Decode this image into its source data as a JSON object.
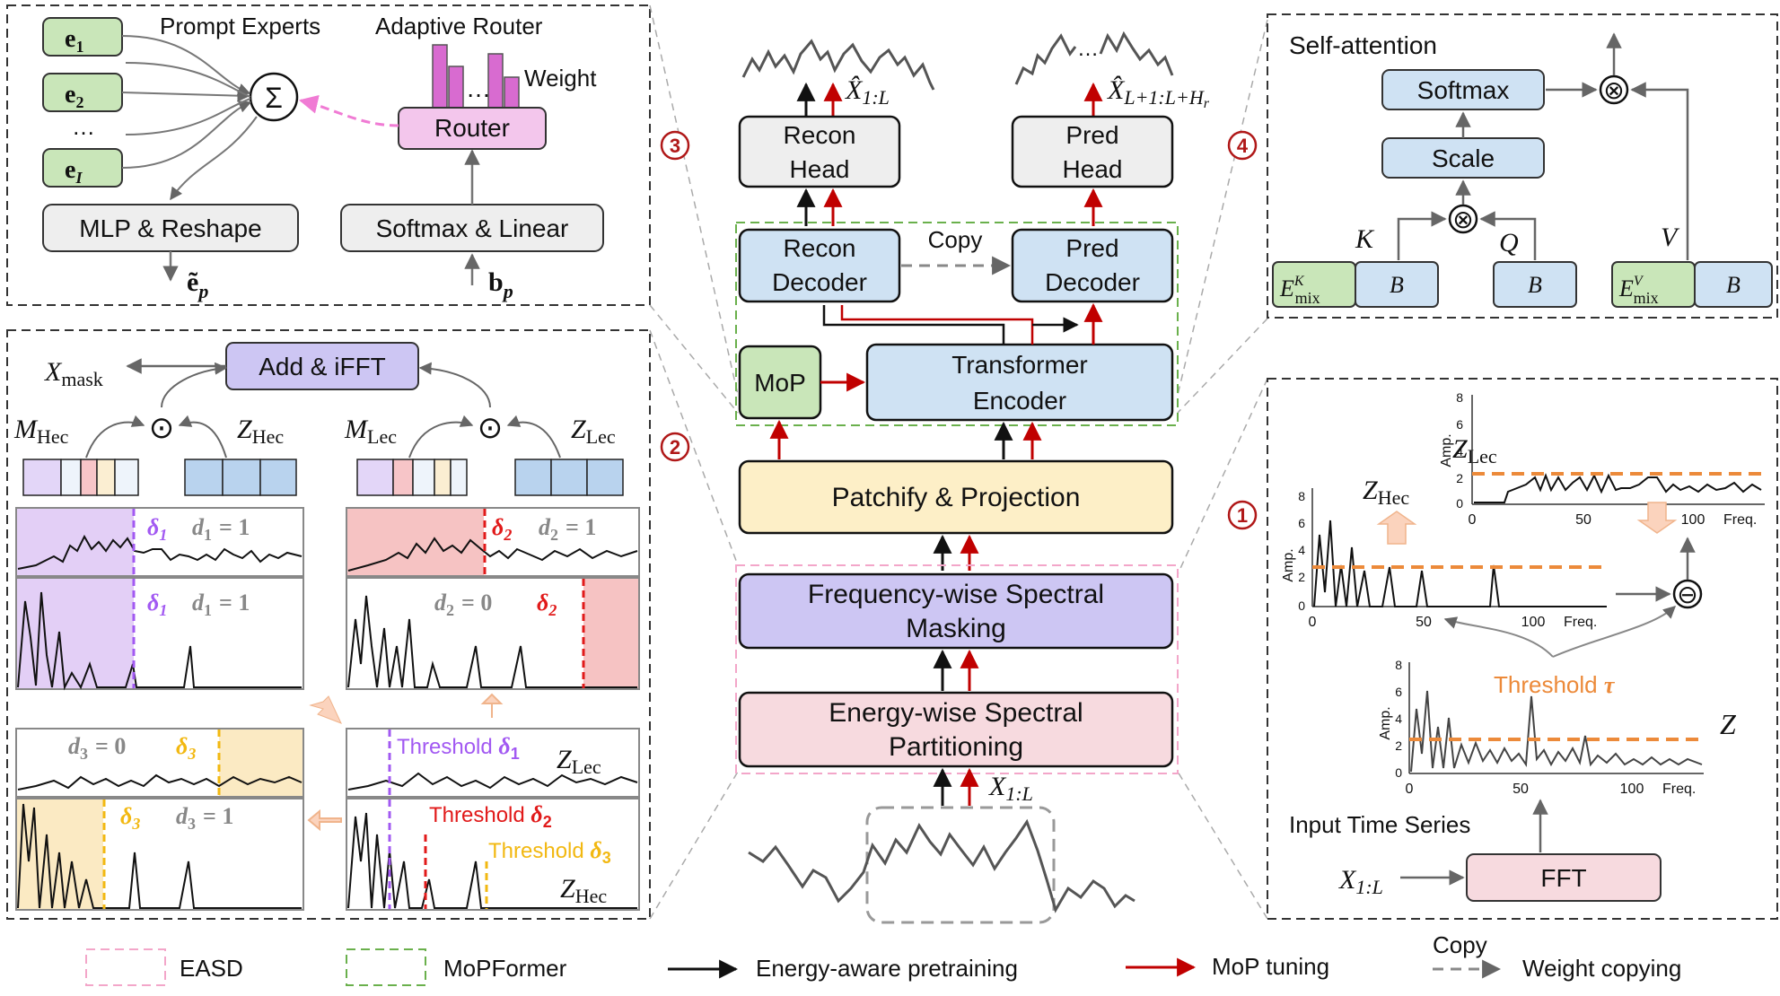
{
  "colors": {
    "green_fill": "#c9e6b9",
    "blue_fill": "#cfe2f3",
    "pink_fill": "#f7dadf",
    "yellow_fill": "#fdefc7",
    "purple_fill": "#cdc6f3",
    "magenta_fill": "#f3c6ec",
    "gray_fill": "#eeeeee",
    "dark_red": "#b01818",
    "orange": "#ec8a3a",
    "purple_line": "#a259f2",
    "red_line": "#e11a1a",
    "yellow_line": "#f2b811",
    "mop_pink": "#f37bd6"
  },
  "panel3": {
    "prompt_experts": "Prompt Experts",
    "adaptive_router": "Adaptive Router",
    "weight": "Weight",
    "router": "Router",
    "mlp_reshape": "MLP & Reshape",
    "softmax_linear": "Softmax & Linear",
    "sigma": "Σ",
    "e1_base": "e",
    "e1_sub": "1",
    "e2_base": "e",
    "e2_sub": "2",
    "eI_base": "e",
    "eI_sub": "I",
    "dots": "…",
    "etilde_p_base": "ẽ",
    "etilde_p_sub": "p",
    "bp_base": "b",
    "bp_sub": "p"
  },
  "panel2": {
    "add_ifft": "Add & iFFT",
    "x_mask_base": "X",
    "x_mask_sub": "mask",
    "m_hec_base": "M",
    "m_hec_sub": "Hec",
    "z_hec_base": "Z",
    "z_hec_sub": "Hec",
    "m_lec_base": "M",
    "m_lec_sub": "Lec",
    "z_lec_base": "Z",
    "z_lec_sub": "Lec",
    "odot": "⊙",
    "delta1": "δ",
    "delta1_sub": "1",
    "delta2": "δ",
    "delta2_sub": "2",
    "delta3": "δ",
    "delta3_sub": "3",
    "d1_eq_1": "d",
    "d1_sub": "1",
    "eq1": "= 1",
    "eq0": "= 0",
    "d2_sub": "2",
    "d3_sub": "3",
    "threshold_d1": "Threshold ",
    "threshold_d2": "Threshold ",
    "threshold_d3": "Threshold "
  },
  "center": {
    "recon_head": [
      "Recon",
      "Head"
    ],
    "pred_head": [
      "Pred",
      "Head"
    ],
    "recon_decoder": [
      "Recon",
      "Decoder"
    ],
    "pred_decoder": [
      "Pred",
      "Decoder"
    ],
    "copy": "Copy",
    "mop": "MoP",
    "transformer_encoder": [
      "Transformer",
      "Encoder"
    ],
    "patchify": "Patchify & Projection",
    "fsm": [
      "Frequency-wise Spectral",
      "Masking"
    ],
    "esp": [
      "Energy-wise Spectral",
      "Partitioning"
    ],
    "xhat_recon_base": "X̂",
    "xhat_recon_sub": "1:L",
    "xhat_pred_base": "X̂",
    "xhat_pred_sub": "L+1:L+H",
    "xhat_pred_subsub": "r",
    "x_in_base": "X",
    "x_in_sub": "1:L",
    "pred_dots": "…",
    "badge3": "3",
    "badge2": "2",
    "badge4": "4",
    "badge1": "1"
  },
  "panel4": {
    "title": "Self-attention",
    "softmax": "Softmax",
    "scale": "Scale",
    "otimes": "⊗",
    "k": "K",
    "q": "Q",
    "v": "V",
    "b": "B",
    "emix_base": "E",
    "emix_sub": "mix",
    "emix_k_sup": "K",
    "emix_v_sup": "V",
    "up_arrow": ""
  },
  "panel1": {
    "z_hec_base": "Z",
    "z_hec_sub": "Hec",
    "z_lec_base": "Z",
    "z_lec_sub": "Lec",
    "z": "Z",
    "threshold_tau": "Threshold ",
    "tau": "τ",
    "input_time_series": "Input Time Series",
    "fft": "FFT",
    "x_in_base": "X",
    "x_in_sub": "1:L",
    "ominus": "⊖",
    "amp": "Amp.",
    "freq": "Freq.",
    "ticks_x": [
      "0",
      "50",
      "100"
    ],
    "ticks_y8": [
      "8",
      "6",
      "4",
      "2",
      "0"
    ]
  },
  "legend": {
    "easd": "EASD",
    "mopformer": "MoPFormer",
    "pretraining": "Energy-aware pretraining",
    "mop_tuning": "MoP tuning",
    "copy": "Copy",
    "weight_copying": "Weight copying"
  }
}
